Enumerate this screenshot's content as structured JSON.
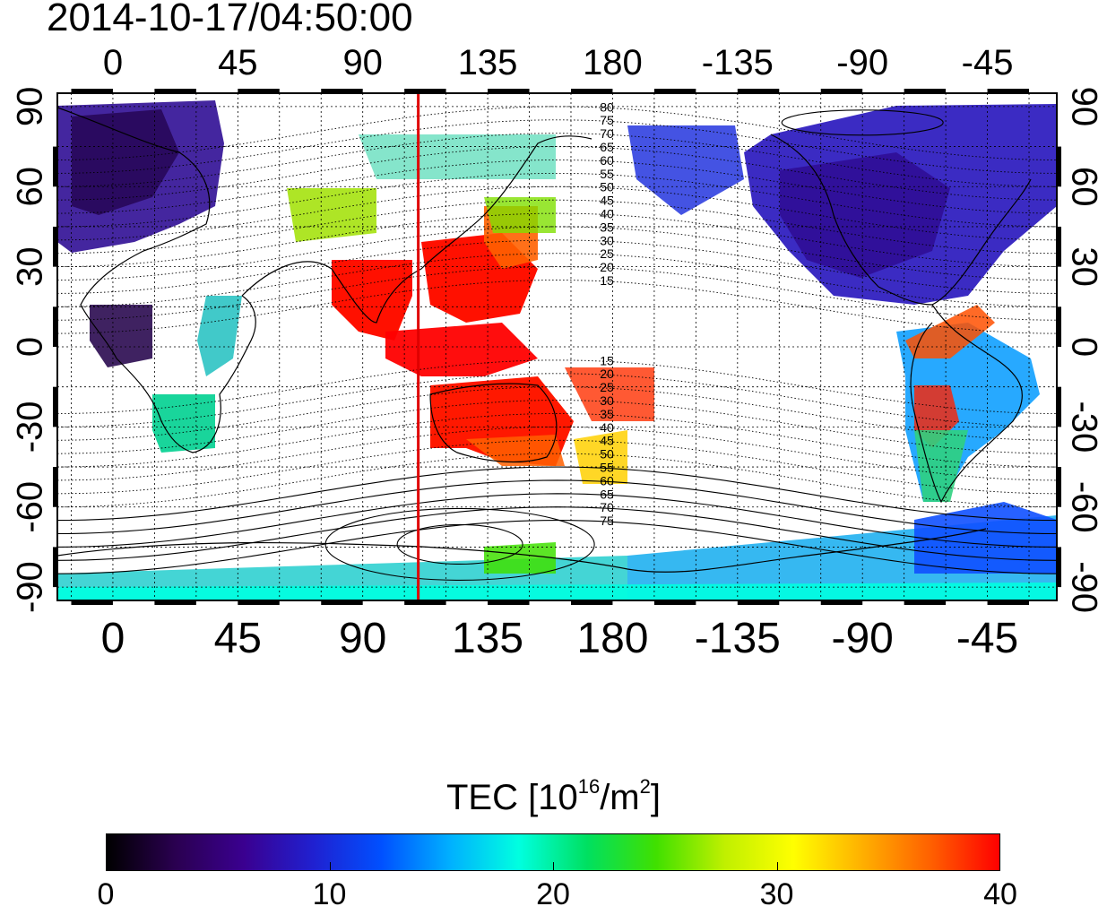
{
  "title": "2014-10-17/04:50:00",
  "map": {
    "lon_ticks": [
      "0",
      "45",
      "90",
      "135",
      "180",
      "-135",
      "-90",
      "-45"
    ],
    "lon_tick_values": [
      0,
      45,
      90,
      135,
      180,
      225,
      270,
      315
    ],
    "lat_ticks": [
      "90",
      "60",
      "30",
      "0",
      "-30",
      "-60",
      "-90"
    ],
    "lat_tick_values": [
      90,
      60,
      30,
      0,
      -30,
      -60,
      -90
    ],
    "lon_range": [
      -20,
      340
    ],
    "lat_range": [
      -95,
      95
    ],
    "grid": true,
    "meridian_marker_lon": 110,
    "contour_labels_north": [
      "80",
      "75",
      "70",
      "65",
      "60",
      "55",
      "50",
      "45",
      "40",
      "35",
      "30",
      "25",
      "20",
      "15"
    ],
    "contour_labels_south": [
      "15",
      "20",
      "25",
      "30",
      "35",
      "40",
      "45",
      "50",
      "55",
      "60",
      "65",
      "70",
      "75"
    ]
  },
  "colorbar": {
    "label": "TEC  [10",
    "label_sup1": "16",
    "label_mid": "/m",
    "label_sup2": "2",
    "label_end": "]",
    "ticks": [
      "0",
      "10",
      "20",
      "30",
      "40"
    ],
    "tick_values": [
      0,
      10,
      20,
      30,
      40
    ],
    "range": [
      0,
      40
    ],
    "colors": [
      "#000000",
      "#2a0050",
      "#3a0090",
      "#2020d0",
      "#0050ff",
      "#00b0ff",
      "#00ffe0",
      "#00e060",
      "#40e000",
      "#c0f000",
      "#ffff00",
      "#ffb000",
      "#ff6000",
      "#ff0000"
    ],
    "marker_color": "#e00000"
  }
}
